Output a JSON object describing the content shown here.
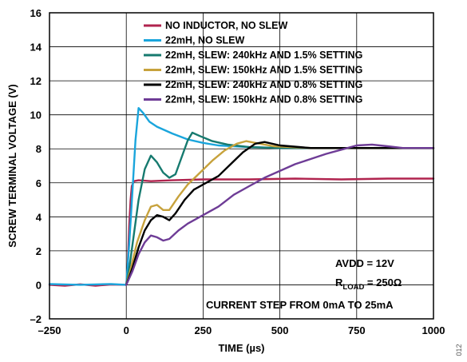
{
  "figure_id": "012",
  "chart_data": {
    "type": "line",
    "xlabel": "TIME (µs)",
    "ylabel": "SCREW TERMINAL VOLTAGE (V)",
    "xlim": [
      -250,
      1000
    ],
    "ylim": [
      -2,
      16
    ],
    "xticks": [
      -250,
      0,
      250,
      500,
      750,
      1000
    ],
    "yticks": [
      -2,
      0,
      2,
      4,
      6,
      8,
      10,
      12,
      14,
      16
    ],
    "grid": true,
    "legend_position": "top-right",
    "annotations": {
      "avdd": "AVDD = 12V",
      "rload_main": "R",
      "rload_sub": "LOAD",
      "rload_value": " = 250Ω",
      "step": "CURRENT STEP FROM 0mA TO 25mA"
    },
    "series": [
      {
        "name": "NO INDUCTOR, NO SLEW",
        "color": "#b0234e",
        "points": [
          [
            -250,
            0.0
          ],
          [
            -200,
            -0.05
          ],
          [
            -150,
            0.03
          ],
          [
            -100,
            -0.05
          ],
          [
            -50,
            0.02
          ],
          [
            0,
            0.0
          ],
          [
            3,
            0.5
          ],
          [
            6,
            1.8
          ],
          [
            10,
            3.6
          ],
          [
            14,
            5.0
          ],
          [
            18,
            5.8
          ],
          [
            25,
            6.1
          ],
          [
            40,
            6.15
          ],
          [
            80,
            6.1
          ],
          [
            150,
            6.15
          ],
          [
            250,
            6.2
          ],
          [
            400,
            6.2
          ],
          [
            550,
            6.25
          ],
          [
            700,
            6.2
          ],
          [
            850,
            6.25
          ],
          [
            1000,
            6.25
          ]
        ]
      },
      {
        "name": "22mH, NO SLEW",
        "color": "#1aa5dc",
        "points": [
          [
            -250,
            0.05
          ],
          [
            -150,
            0.0
          ],
          [
            -50,
            0.05
          ],
          [
            0,
            0.0
          ],
          [
            10,
            2.5
          ],
          [
            20,
            5.5
          ],
          [
            30,
            8.5
          ],
          [
            40,
            10.4
          ],
          [
            55,
            10.1
          ],
          [
            75,
            9.6
          ],
          [
            100,
            9.3
          ],
          [
            150,
            8.9
          ],
          [
            200,
            8.55
          ],
          [
            250,
            8.35
          ],
          [
            300,
            8.2
          ],
          [
            400,
            8.1
          ],
          [
            500,
            8.05
          ],
          [
            700,
            8.05
          ],
          [
            1000,
            8.05
          ]
        ]
      },
      {
        "name": "22mH, SLEW: 240kHz AND 1.5% SETTING",
        "color": "#167a6f",
        "points": [
          [
            0,
            0.0
          ],
          [
            10,
            1.0
          ],
          [
            25,
            3.0
          ],
          [
            40,
            5.0
          ],
          [
            60,
            6.8
          ],
          [
            80,
            7.6
          ],
          [
            100,
            7.2
          ],
          [
            120,
            6.6
          ],
          [
            140,
            6.3
          ],
          [
            160,
            6.5
          ],
          [
            180,
            7.5
          ],
          [
            200,
            8.5
          ],
          [
            215,
            8.95
          ],
          [
            240,
            8.75
          ],
          [
            280,
            8.45
          ],
          [
            330,
            8.25
          ],
          [
            400,
            8.1
          ],
          [
            500,
            8.05
          ],
          [
            700,
            8.05
          ],
          [
            1000,
            8.05
          ]
        ]
      },
      {
        "name": "22mH, SLEW: 150kHz AND 1.5% SETTING",
        "color": "#c7a23c",
        "points": [
          [
            0,
            0.0
          ],
          [
            15,
            1.0
          ],
          [
            35,
            2.5
          ],
          [
            60,
            3.8
          ],
          [
            80,
            4.6
          ],
          [
            100,
            4.7
          ],
          [
            120,
            4.4
          ],
          [
            140,
            4.4
          ],
          [
            170,
            5.2
          ],
          [
            200,
            5.9
          ],
          [
            240,
            6.6
          ],
          [
            280,
            7.3
          ],
          [
            320,
            7.9
          ],
          [
            360,
            8.3
          ],
          [
            390,
            8.45
          ],
          [
            420,
            8.35
          ],
          [
            480,
            8.15
          ],
          [
            600,
            8.05
          ],
          [
            1000,
            8.05
          ]
        ]
      },
      {
        "name": "22mH, SLEW: 240kHz AND 0.8% SETTING",
        "color": "#000000",
        "points": [
          [
            0,
            0.0
          ],
          [
            20,
            1.0
          ],
          [
            40,
            2.2
          ],
          [
            60,
            3.2
          ],
          [
            80,
            3.8
          ],
          [
            100,
            4.1
          ],
          [
            120,
            4.0
          ],
          [
            140,
            3.8
          ],
          [
            160,
            4.2
          ],
          [
            190,
            5.0
          ],
          [
            220,
            5.6
          ],
          [
            260,
            6.0
          ],
          [
            300,
            6.4
          ],
          [
            340,
            7.1
          ],
          [
            380,
            7.8
          ],
          [
            420,
            8.3
          ],
          [
            450,
            8.4
          ],
          [
            500,
            8.2
          ],
          [
            600,
            8.05
          ],
          [
            1000,
            8.05
          ]
        ]
      },
      {
        "name": "22mH, SLEW: 150kHz AND 0.8% SETTING",
        "color": "#6e3c96",
        "points": [
          [
            0,
            0.0
          ],
          [
            20,
            0.8
          ],
          [
            40,
            1.8
          ],
          [
            60,
            2.5
          ],
          [
            80,
            2.9
          ],
          [
            100,
            2.8
          ],
          [
            120,
            2.6
          ],
          [
            140,
            2.7
          ],
          [
            170,
            3.2
          ],
          [
            200,
            3.6
          ],
          [
            250,
            4.1
          ],
          [
            300,
            4.6
          ],
          [
            350,
            5.3
          ],
          [
            400,
            5.8
          ],
          [
            450,
            6.3
          ],
          [
            500,
            6.7
          ],
          [
            550,
            7.1
          ],
          [
            600,
            7.4
          ],
          [
            650,
            7.7
          ],
          [
            700,
            7.95
          ],
          [
            750,
            8.2
          ],
          [
            800,
            8.25
          ],
          [
            850,
            8.15
          ],
          [
            900,
            8.05
          ],
          [
            1000,
            8.05
          ]
        ]
      }
    ]
  }
}
